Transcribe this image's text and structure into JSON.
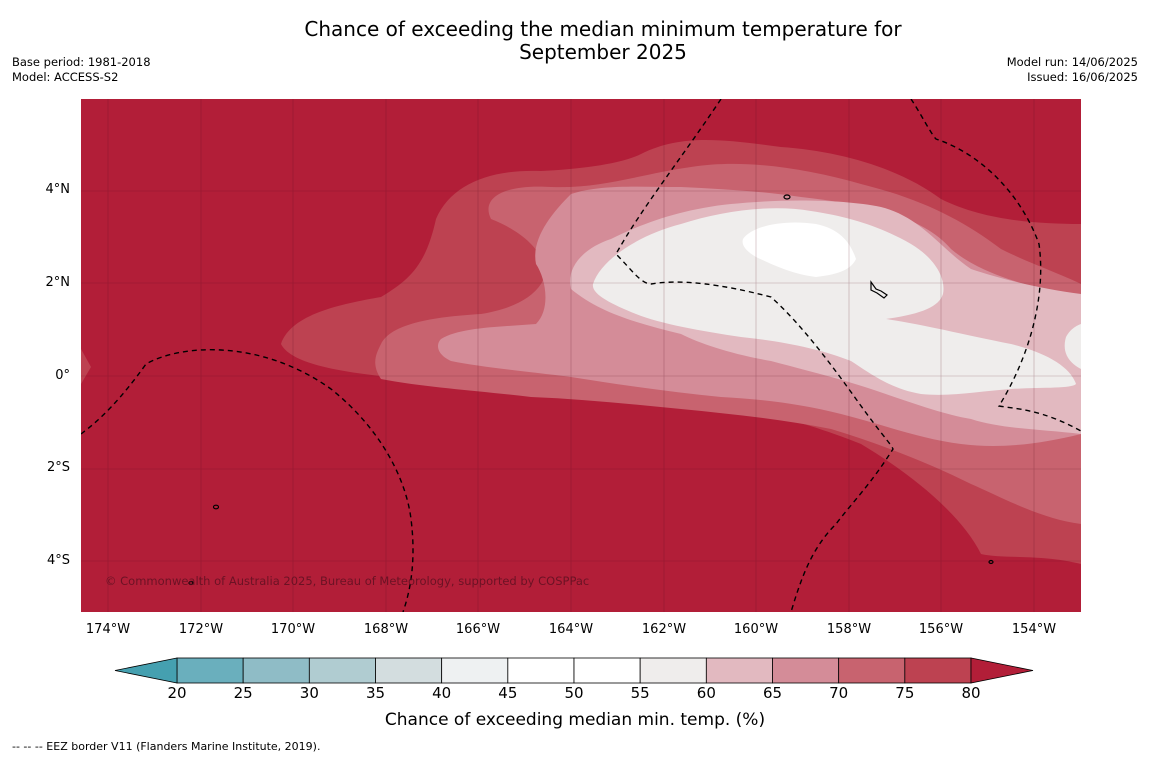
{
  "title": "Chance of exceeding the median minimum temperature for",
  "title_line2": "September 2025",
  "meta_left": {
    "base_period": "Base period: 1981-2018",
    "model": "Model: ACCESS-S2"
  },
  "meta_right": {
    "model_run": "Model run: 14/06/2025",
    "issued": "Issued: 16/06/2025"
  },
  "copyright": "© Commonwealth of Australia 2025, Bureau of Meteorology, supported by COSPPac",
  "lat_ticks": [
    "4°N",
    "2°N",
    "0°",
    "2°S",
    "4°S"
  ],
  "lon_ticks": [
    "174°W",
    "172°W",
    "170°W",
    "168°W",
    "166°W",
    "164°W",
    "162°W",
    "160°W",
    "158°W",
    "156°W",
    "154°W"
  ],
  "colorbar": {
    "ticks": [
      "20",
      "25",
      "30",
      "35",
      "40",
      "45",
      "50",
      "55",
      "60",
      "65",
      "70",
      "75",
      "80"
    ],
    "colors": [
      "#45a0b0",
      "#6aafbd",
      "#8fbcc6",
      "#b0ccd1",
      "#d3dddf",
      "#eef1f2",
      "#ffffff",
      "#ffffff",
      "#efedec",
      "#e2b9c0",
      "#d48c98",
      "#c8636f",
      "#bd4251",
      "#b21e38"
    ],
    "label": "Chance of exceeding median min. temp. (%)"
  },
  "footnote": "--  --  -- EEZ border V11 (Flanders Marine Institute, 2019)."
}
